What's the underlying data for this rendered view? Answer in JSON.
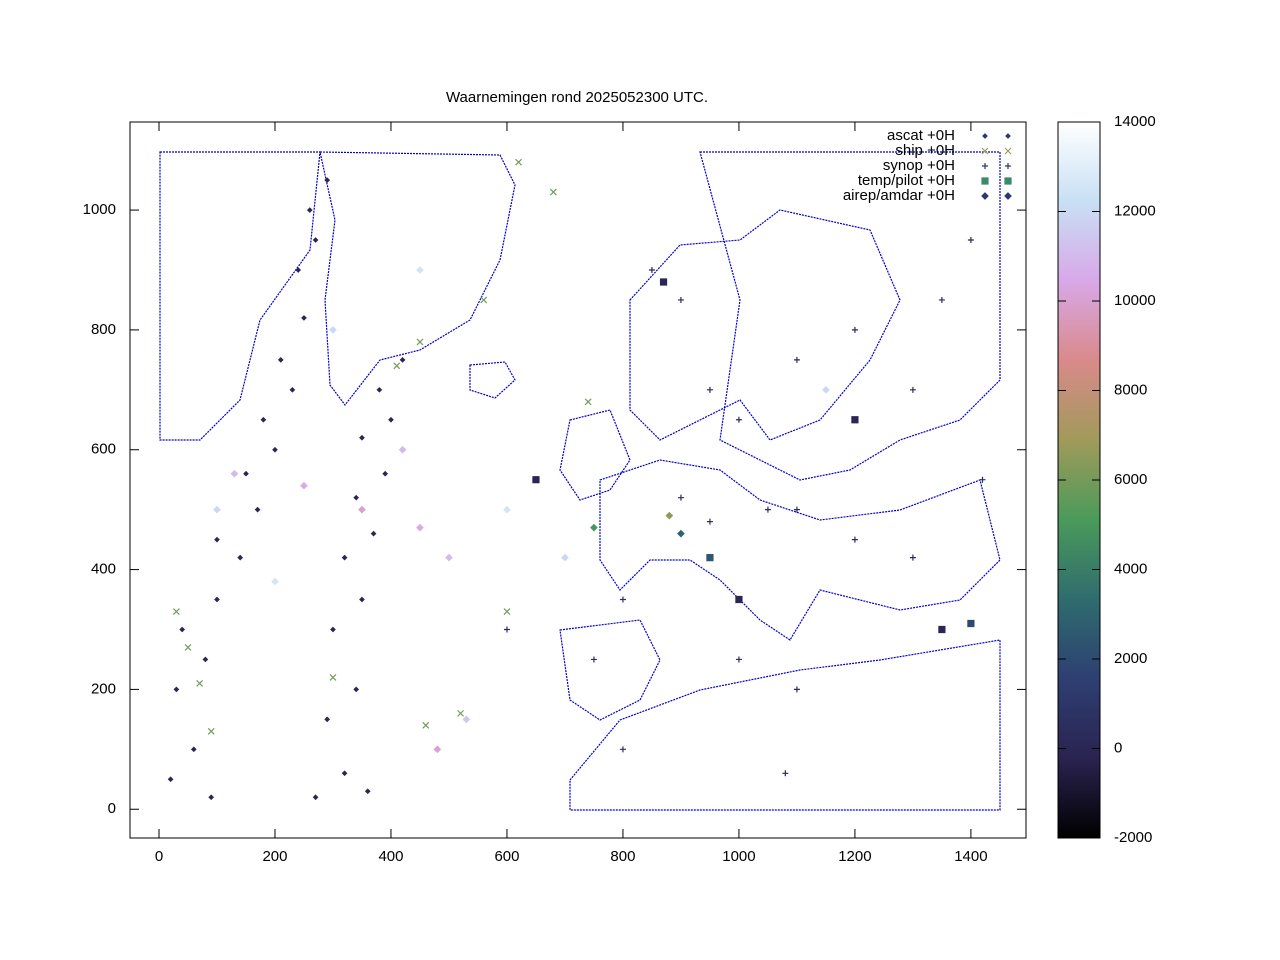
{
  "chart_data": {
    "type": "scatter",
    "title": "Waarnemingen rond 2025052300 UTC.",
    "xlim": [
      -50,
      1495
    ],
    "ylim": [
      -48,
      1147
    ],
    "xticks": [
      0,
      200,
      400,
      600,
      800,
      1000,
      1200,
      1400
    ],
    "yticks": [
      0,
      200,
      400,
      600,
      800,
      1000
    ],
    "clim": [
      -2000,
      14000
    ],
    "cticks": [
      -2000,
      0,
      2000,
      4000,
      6000,
      8000,
      10000,
      12000,
      14000
    ],
    "colormap": [
      "#000000",
      "#2a2350",
      "#2e3f72",
      "#2f6c6e",
      "#4a9a5a",
      "#a09a5a",
      "#d98a8a",
      "#d8a8e8",
      "#c8e0f4",
      "#ffffff"
    ],
    "legend": "top-right",
    "series": [
      {
        "name": "ascat +0H",
        "marker": "dot",
        "color": "#2c3870",
        "x": [
          20,
          60,
          90,
          30,
          80,
          40,
          100,
          140,
          100,
          170,
          150,
          200,
          180,
          230,
          210,
          250,
          240,
          270,
          260,
          290,
          270,
          320,
          360,
          290,
          340,
          300,
          350,
          320,
          370,
          340,
          390,
          350,
          400,
          380,
          420
        ],
        "values": [
          50,
          100,
          20,
          200,
          250,
          300,
          350,
          420,
          450,
          500,
          560,
          600,
          650,
          700,
          750,
          820,
          900,
          950,
          1000,
          1050,
          20,
          60,
          30,
          150,
          200,
          300,
          350,
          420,
          460,
          520,
          560,
          620,
          650,
          700,
          750
        ],
        "z": [
          0,
          0,
          0,
          0,
          0,
          0,
          0,
          0,
          0,
          0,
          0,
          0,
          0,
          0,
          0,
          0,
          0,
          0,
          0,
          0,
          0,
          0,
          0,
          0,
          0,
          0,
          0,
          0,
          0,
          0,
          0,
          0,
          0,
          0,
          0
        ]
      },
      {
        "name": "ship +0H",
        "marker": "x",
        "color": "#a09a5a",
        "x": [
          30,
          50,
          70,
          90,
          300,
          460,
          520,
          600,
          620,
          560,
          450,
          680,
          740,
          410
        ],
        "values": [
          330,
          270,
          210,
          130,
          220,
          140,
          160,
          330,
          1080,
          850,
          780,
          1030,
          680,
          740
        ],
        "z": [
          6000,
          6000,
          6000,
          6000,
          6000,
          6000,
          6000,
          6000,
          6000,
          6000,
          6000,
          6000,
          6000,
          6000
        ]
      },
      {
        "name": "synop +0H",
        "marker": "plus",
        "color": "#2c3870",
        "x": [
          850,
          900,
          950,
          1000,
          1100,
          1200,
          1300,
          1350,
          900,
          950,
          1050,
          1100,
          1200,
          800,
          750,
          600,
          1000,
          1100,
          800,
          1080,
          1400,
          1420,
          1300
        ],
        "values": [
          900,
          850,
          700,
          650,
          750,
          800,
          700,
          850,
          520,
          480,
          500,
          500,
          450,
          350,
          250,
          300,
          250,
          200,
          100,
          60,
          950,
          550,
          420
        ],
        "z": [
          0,
          200,
          100,
          300,
          200,
          150,
          200,
          100,
          300,
          500,
          400,
          300,
          200,
          600,
          400,
          300,
          200,
          100,
          300,
          200,
          100,
          300,
          150
        ]
      },
      {
        "name": "temp/pilot +0H",
        "marker": "square",
        "color": "#3c8a6a",
        "x": [
          1400,
          950,
          870,
          650,
          1200,
          1350,
          1000
        ],
        "values": [
          310,
          420,
          880,
          550,
          650,
          300,
          350
        ],
        "z": [
          2000,
          2500,
          0,
          0,
          0,
          0,
          0
        ]
      },
      {
        "name": "airep/amdar +0H",
        "marker": "diamond",
        "color": "#2c3870",
        "x": [
          130,
          250,
          350,
          450,
          500,
          480,
          530,
          100,
          600,
          700,
          750,
          880,
          900,
          1150,
          200,
          300,
          450,
          420
        ],
        "values": [
          560,
          540,
          500,
          470,
          420,
          100,
          150,
          500,
          500,
          420,
          470,
          490,
          460,
          700,
          380,
          800,
          900,
          600
        ],
        "z": [
          11000,
          10500,
          10000,
          10500,
          11000,
          10000,
          11500,
          12000,
          12500,
          12000,
          5000,
          6500,
          3000,
          12000,
          12500,
          12000,
          12500,
          11000
        ]
      }
    ]
  }
}
